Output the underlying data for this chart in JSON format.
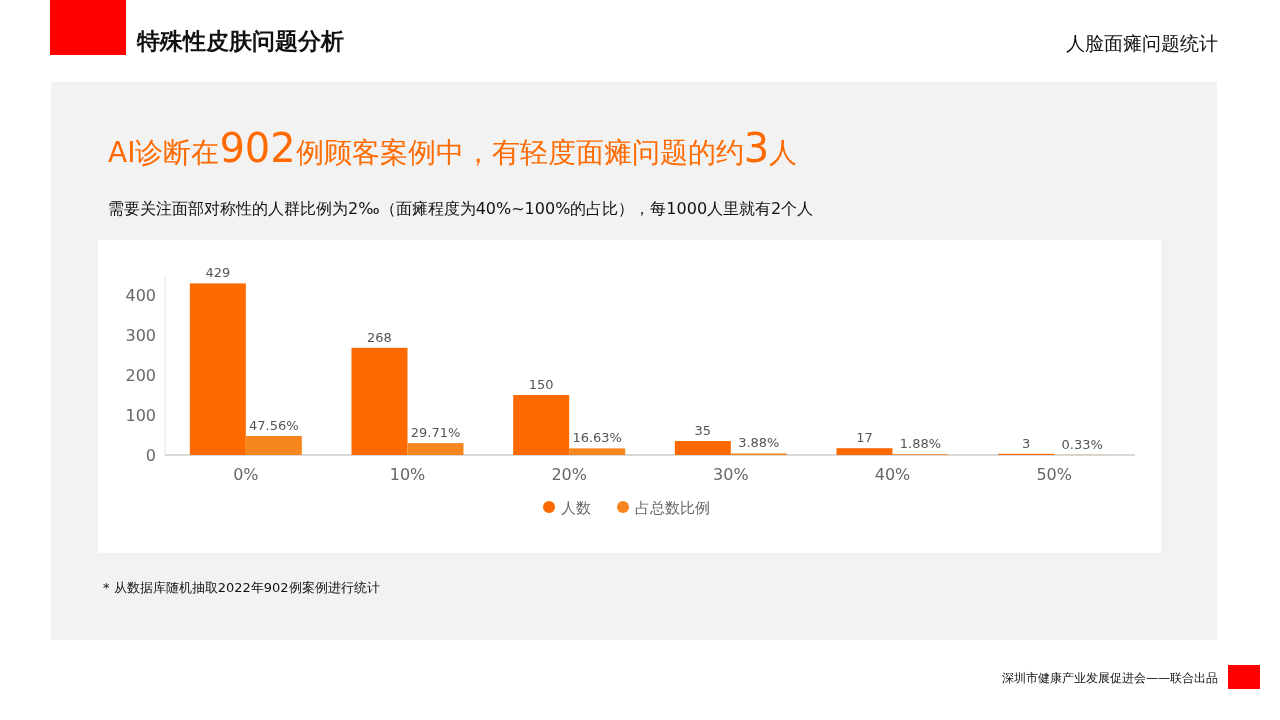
{
  "chart_data": {
    "type": "bar",
    "title": "特殊性皮肤问题分析",
    "subtitle": "AI诊断在902例顾客案例中，有轻度面瘫问题的约3人",
    "annotations": [
      "人脸面瘫问题统计",
      "需要关注面部对称性的人群比例为2‰（面瘫程度为40%~100%的占比），每1000人里就有2个人",
      "* 从数据库随机抽取2022年902例案例进行统计",
      "深圳市健康产业发展促进会——联合出品"
    ],
    "categories": [
      "0%",
      "10%",
      "20%",
      "30%",
      "40%",
      "50%"
    ],
    "series": [
      {
        "name": "人数",
        "color": "#ff6a00",
        "values": [
          429,
          268,
          150,
          35,
          17,
          3
        ]
      },
      {
        "name": "占总数比例",
        "color": "#f7861e",
        "values": [
          47.56,
          29.71,
          16.63,
          3.88,
          1.88,
          0.33
        ],
        "value_labels": [
          "47.56%",
          "29.71%",
          "16.63%",
          "3.88%",
          "1.88%",
          "0.33%"
        ]
      }
    ],
    "ylim": [
      0,
      450
    ],
    "yticks": [
      0,
      100,
      200,
      300,
      400
    ],
    "grid": false,
    "legend": "bottom",
    "data_labels": true
  }
}
